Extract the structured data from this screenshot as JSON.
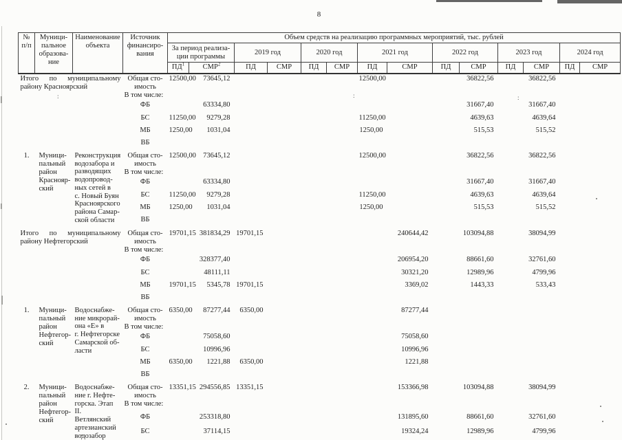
{
  "page": {
    "number": "8"
  },
  "table": {
    "header": {
      "col_num": "№\nп/п",
      "col_municipality": "Муници-\nпальное\nобразова-\nние",
      "col_object": "Наименование\nобъекта",
      "col_source": "Источник\nфинансиро-\nвания",
      "col_volume": "Объем средств на реализацию программных мероприятий, тыс. рублей",
      "period_label": "За период реализа-\nции программы",
      "years": [
        "2019 год",
        "2020 год",
        "2021 год",
        "2022 год",
        "2023 год",
        "2024 год"
      ],
      "pd_label": "ПД",
      "pd_sup": "1",
      "smr_label": "СМР",
      "smr_sup": "2",
      "pd_plain": "ПД",
      "smr_plain": "СМР"
    },
    "source_labels": {
      "total": "Общая сто-\nимость",
      "including": "В том числе:"
    },
    "blocks": [
      {
        "type": "total",
        "label_line1": "Итого по муниципальному",
        "label_line2": "району Красноярский",
        "rows": [
          {
            "src": "total",
            "values": [
              "12500,00",
              "73645,12",
              "",
              "",
              "",
              "",
              "12500,00",
              "",
              "",
              "36822,56",
              "",
              "36822,56",
              "",
              ""
            ]
          },
          {
            "src": "ФБ",
            "values": [
              "",
              "63334,80",
              "",
              "",
              "",
              "",
              "",
              "",
              "",
              "31667,40",
              "",
              "31667,40",
              "",
              ""
            ]
          },
          {
            "src": "БС",
            "values": [
              "11250,00",
              "9279,28",
              "",
              "",
              "",
              "",
              "11250,00",
              "",
              "",
              "4639,63",
              "",
              "4639,64",
              "",
              ""
            ]
          },
          {
            "src": "МБ",
            "values": [
              "1250,00",
              "1031,04",
              "",
              "",
              "",
              "",
              "1250,00",
              "",
              "",
              "515,53",
              "",
              "515,52",
              "",
              ""
            ]
          },
          {
            "src": "ВБ",
            "values": [
              "",
              "",
              "",
              "",
              "",
              "",
              "",
              "",
              "",
              "",
              "",
              "",
              "",
              ""
            ]
          }
        ]
      },
      {
        "type": "item",
        "num": "1.",
        "municipality": "Муници-\nпальный\nрайон\nКраснояр-\nский",
        "object": "Реконструкция\nводозабора и\nразводящих\nводопровод-\nных сетей в\nс. Новый Буян\nКрасноярского\nрайона Самар-\nской области",
        "rows": [
          {
            "src": "total",
            "values": [
              "12500,00",
              "73645,12",
              "",
              "",
              "",
              "",
              "12500,00",
              "",
              "",
              "36822,56",
              "",
              "36822,56",
              "",
              ""
            ]
          },
          {
            "src": "ФБ",
            "values": [
              "",
              "63334,80",
              "",
              "",
              "",
              "",
              "",
              "",
              "",
              "31667,40",
              "",
              "31667,40",
              "",
              ""
            ]
          },
          {
            "src": "БС",
            "values": [
              "11250,00",
              "9279,28",
              "",
              "",
              "",
              "",
              "11250,00",
              "",
              "",
              "4639,63",
              "",
              "4639,64",
              "",
              ""
            ]
          },
          {
            "src": "МБ",
            "values": [
              "1250,00",
              "1031,04",
              "",
              "",
              "",
              "",
              "1250,00",
              "",
              "",
              "515,53",
              "",
              "515,52",
              "",
              ""
            ]
          },
          {
            "src": "ВБ",
            "values": [
              "",
              "",
              "",
              "",
              "",
              "",
              "",
              "",
              "",
              "",
              "",
              "",
              "",
              ""
            ]
          }
        ]
      },
      {
        "type": "total",
        "label_line1": "Итого по муниципальному",
        "label_line2": "району Нефтегорский",
        "rows": [
          {
            "src": "total",
            "values": [
              "19701,15",
              "381834,29",
              "19701,15",
              "",
              "",
              "",
              "",
              "240644,42",
              "",
              "103094,88",
              "",
              "38094,99",
              "",
              ""
            ]
          },
          {
            "src": "ФБ",
            "values": [
              "",
              "328377,40",
              "",
              "",
              "",
              "",
              "",
              "206954,20",
              "",
              "88661,60",
              "",
              "32761,60",
              "",
              ""
            ]
          },
          {
            "src": "БС",
            "values": [
              "",
              "48111,11",
              "",
              "",
              "",
              "",
              "",
              "30321,20",
              "",
              "12989,96",
              "",
              "4799,96",
              "",
              ""
            ]
          },
          {
            "src": "МБ",
            "values": [
              "19701,15",
              "5345,78",
              "19701,15",
              "",
              "",
              "",
              "",
              "3369,02",
              "",
              "1443,33",
              "",
              "533,43",
              "",
              ""
            ]
          },
          {
            "src": "ВБ",
            "values": [
              "",
              "",
              "",
              "",
              "",
              "",
              "",
              "",
              "",
              "",
              "",
              "",
              "",
              ""
            ]
          }
        ]
      },
      {
        "type": "item",
        "num": "1.",
        "municipality": "Муници-\nпальный\nрайон\nНефтегор-\nский",
        "object": "Водоснабже-\nние микрорай-\nона «Е» в\nг. Нефтегорске\nСамарской об-\nласти",
        "rows": [
          {
            "src": "total",
            "values": [
              "6350,00",
              "87277,44",
              "6350,00",
              "",
              "",
              "",
              "",
              "87277,44",
              "",
              "",
              "",
              "",
              "",
              ""
            ]
          },
          {
            "src": "ФБ",
            "values": [
              "",
              "75058,60",
              "",
              "",
              "",
              "",
              "",
              "75058,60",
              "",
              "",
              "",
              "",
              "",
              ""
            ]
          },
          {
            "src": "БС",
            "values": [
              "",
              "10996,96",
              "",
              "",
              "",
              "",
              "",
              "10996,96",
              "",
              "",
              "",
              "",
              "",
              ""
            ]
          },
          {
            "src": "МБ",
            "values": [
              "6350,00",
              "1221,88",
              "6350,00",
              "",
              "",
              "",
              "",
              "1221,88",
              "",
              "",
              "",
              "",
              "",
              ""
            ]
          },
          {
            "src": "ВБ",
            "values": [
              "",
              "",
              "",
              "",
              "",
              "",
              "",
              "",
              "",
              "",
              "",
              "",
              "",
              ""
            ]
          }
        ]
      },
      {
        "type": "item",
        "num": "2.",
        "municipality": "Муници-\nпальный\nрайон\nНефтегор-\nский",
        "object": "Водоснабже-\nние г. Нефте-\nгорска. Этап II.\nВетлянский\nартезианский\nводозабор",
        "rows": [
          {
            "src": "total",
            "values": [
              "13351,15",
              "294556,85",
              "13351,15",
              "",
              "",
              "",
              "",
              "153366,98",
              "",
              "103094,88",
              "",
              "38094,99",
              "",
              ""
            ]
          },
          {
            "src": "ФБ",
            "values": [
              "",
              "253318,80",
              "",
              "",
              "",
              "",
              "",
              "131895,60",
              "",
              "88661,60",
              "",
              "32761,60",
              "",
              ""
            ]
          },
          {
            "src": "БС",
            "values": [
              "",
              "37114,15",
              "",
              "",
              "",
              "",
              "",
              "19324,24",
              "",
              "12989,96",
              "",
              "4799,96",
              "",
              ""
            ]
          }
        ]
      }
    ]
  }
}
